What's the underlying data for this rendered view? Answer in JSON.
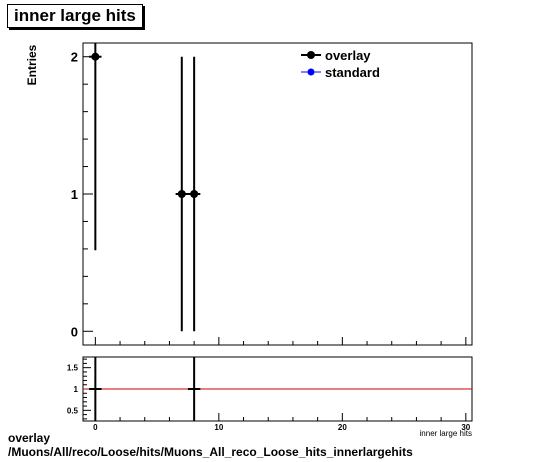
{
  "title": "inner large hits",
  "caption": {
    "line1": "overlay",
    "line2": "/Muons/All/reco/Loose/hits/Muons_All_reco_Loose_hits_innerlargehits"
  },
  "colors": {
    "overlay": "#000000",
    "standard": "#0000ff",
    "ratio_line": "#cc0000"
  },
  "chart_data": [
    {
      "type": "scatter",
      "panel": "main",
      "ylabel": "Entries",
      "xlabel": "inner large hits",
      "xlim": [
        -1,
        30.5
      ],
      "ylim": [
        -0.1,
        2.1
      ],
      "x_ticks": [
        0,
        10,
        20,
        30
      ],
      "y_ticks": [
        0,
        1,
        2
      ],
      "legend": {
        "placement": "top-right",
        "entries": [
          "overlay",
          "standard"
        ]
      },
      "series": [
        {
          "name": "overlay",
          "x": [
            0,
            7,
            8
          ],
          "y": [
            2,
            1,
            1
          ],
          "y_err_low": [
            1.41,
            1.0,
            1.0
          ],
          "y_err_high": [
            1.41,
            1.0,
            1.0
          ],
          "x_err": [
            0.5,
            0.5,
            0.5
          ]
        },
        {
          "name": "standard",
          "x": [],
          "y": []
        }
      ]
    },
    {
      "type": "line",
      "panel": "ratio",
      "xlim": [
        -1,
        30.5
      ],
      "ylim": [
        0.25,
        1.75
      ],
      "x_ticks": [
        0,
        10,
        20,
        30
      ],
      "y_ticks": [
        0.5,
        1,
        1.5
      ],
      "reference_line": 1,
      "points": [
        {
          "x": 0,
          "y": 1
        },
        {
          "x": 8,
          "y": 1
        }
      ]
    }
  ]
}
